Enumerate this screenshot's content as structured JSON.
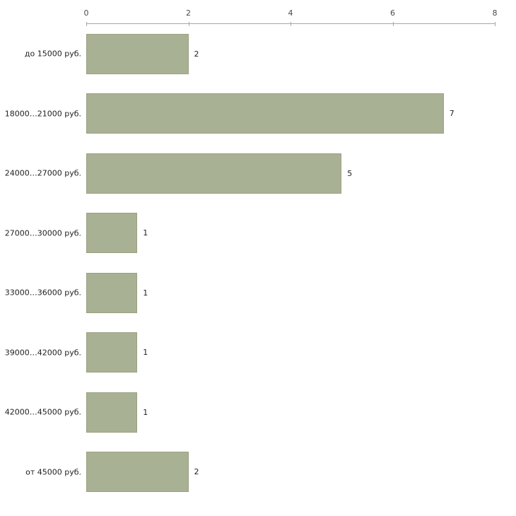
{
  "chart_data": {
    "type": "bar",
    "orientation": "horizontal",
    "title": "",
    "xlabel": "",
    "ylabel": "",
    "categories": [
      "до 15000 руб.",
      "18000…21000 руб.",
      "24000…27000 руб.",
      "27000…30000 руб.",
      "33000…36000 руб.",
      "39000…42000 руб.",
      "42000…45000 руб.",
      "от 45000 руб."
    ],
    "values": [
      2,
      7,
      5,
      1,
      1,
      1,
      1,
      2
    ],
    "xlim": [
      0,
      8
    ],
    "x_ticks": [
      0,
      2,
      4,
      6,
      8
    ],
    "grid": "off",
    "legend": "none",
    "axis_position": "top"
  },
  "colors": {
    "bar_fill": "#a9b194",
    "bar_border": "#99a181",
    "axis_line": "#a6a6a6",
    "tick_text": "#4a4a4a",
    "label_text": "#1f1f1f",
    "background": "#ffffff"
  }
}
